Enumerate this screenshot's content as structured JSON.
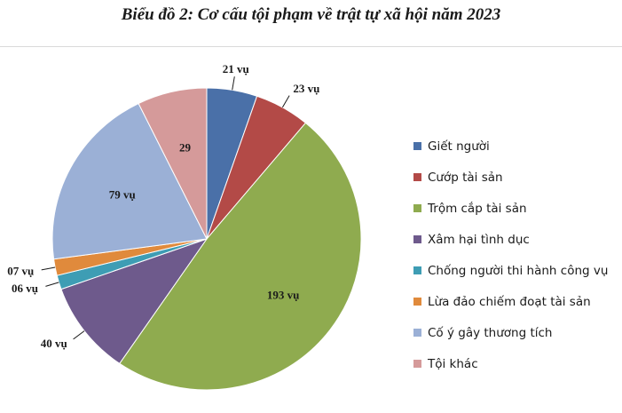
{
  "chart_data": {
    "type": "pie",
    "title": "Biểu đồ 2: Cơ cấu tội phạm về trật tự xã hội năm 2023",
    "legend_position": "right",
    "slices": [
      {
        "name": "Giết người",
        "value": 21,
        "label": "21 vụ",
        "color": "#4a70a8"
      },
      {
        "name": "Cướp tài sản",
        "value": 23,
        "label": "23 vụ",
        "color": "#b34a47"
      },
      {
        "name": "Trộm cắp tài sản",
        "value": 193,
        "label": "193 vụ",
        "color": "#8fab4f"
      },
      {
        "name": "Xâm hại tình dục",
        "value": 40,
        "label": "40 vụ",
        "color": "#6e5a8c"
      },
      {
        "name": "Chống người thi hành công vụ",
        "value": 6,
        "label": "06 vụ",
        "color": "#3e9db4"
      },
      {
        "name": "Lừa đảo chiếm đoạt tài sản",
        "value": 7,
        "label": "07 vụ",
        "color": "#e08a3c"
      },
      {
        "name": "Cố ý gây thương tích",
        "value": 79,
        "label": "79 vụ",
        "color": "#9bb0d6"
      },
      {
        "name": "Tội khác",
        "value": 29,
        "label": "29",
        "color": "#d59a9a"
      }
    ]
  }
}
